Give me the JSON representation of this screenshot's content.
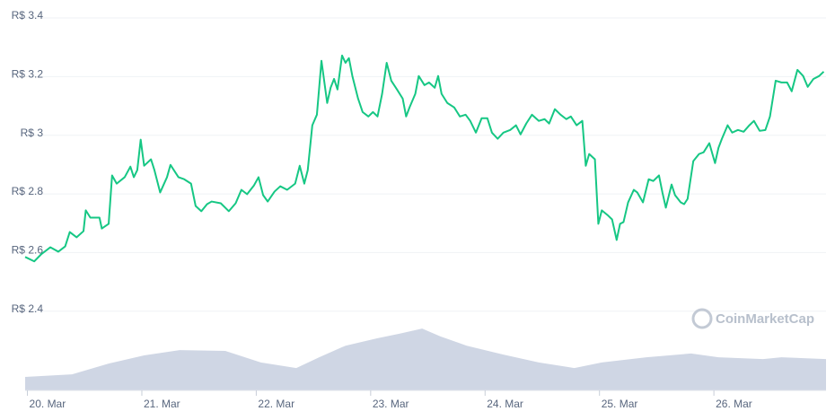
{
  "chart_data": {
    "type": "line",
    "watermark": "CoinMarketCap",
    "ylim": [
      2.13,
      3.4
    ],
    "yticks": [
      {
        "value": 2.4,
        "label": "R$ 2.4"
      },
      {
        "value": 2.6,
        "label": "R$ 2.6"
      },
      {
        "value": 2.8,
        "label": "R$ 2.8"
      },
      {
        "value": 3,
        "label": "R$ 3"
      },
      {
        "value": 3.2,
        "label": "R$ 3.2"
      },
      {
        "value": 3.4,
        "label": "R$ 3.4"
      }
    ],
    "y2lim": [
      0,
      100
    ],
    "xlim": [
      -0.02,
      6.98
    ],
    "xticks": [
      {
        "value": 0,
        "label": "20. Mar"
      },
      {
        "value": 1,
        "label": "21. Mar"
      },
      {
        "value": 2,
        "label": "22. Mar"
      },
      {
        "value": 3,
        "label": "23. Mar"
      },
      {
        "value": 4,
        "label": "24. Mar"
      },
      {
        "value": 5,
        "label": "25. Mar"
      },
      {
        "value": 6,
        "label": "26. Mar"
      }
    ],
    "grid": true,
    "series": [
      {
        "type": "area",
        "axis": "y2",
        "color": "#cfd6e4",
        "x": [
          -0.02,
          0.39,
          0.71,
          1.02,
          1.33,
          1.73,
          2.04,
          2.35,
          2.55,
          2.78,
          3.06,
          3.25,
          3.45,
          3.61,
          3.84,
          4.16,
          4.47,
          4.78,
          5.02,
          5.41,
          5.8,
          6.04,
          6.43,
          6.59,
          6.98
        ],
        "values": [
          3.6,
          4.3,
          7.2,
          9.4,
          10.8,
          10.6,
          7.5,
          6.0,
          8.9,
          12.0,
          14.0,
          15.2,
          16.6,
          14.5,
          12.0,
          9.6,
          7.5,
          6.0,
          7.5,
          8.9,
          9.9,
          8.9,
          8.4,
          8.9,
          8.4
        ]
      },
      {
        "type": "line",
        "color": "#16c784",
        "x": [
          -0.02,
          0.06,
          0.12,
          0.2,
          0.27,
          0.33,
          0.37,
          0.43,
          0.49,
          0.51,
          0.55,
          0.63,
          0.65,
          0.71,
          0.74,
          0.78,
          0.85,
          0.9,
          0.93,
          0.96,
          0.99,
          1.02,
          1.08,
          1.11,
          1.16,
          1.22,
          1.25,
          1.32,
          1.37,
          1.43,
          1.47,
          1.52,
          1.57,
          1.61,
          1.69,
          1.76,
          1.82,
          1.87,
          1.92,
          1.98,
          2.02,
          2.06,
          2.1,
          2.16,
          2.21,
          2.27,
          2.34,
          2.38,
          2.42,
          2.45,
          2.49,
          2.53,
          2.57,
          2.62,
          2.65,
          2.68,
          2.71,
          2.75,
          2.78,
          2.81,
          2.84,
          2.89,
          2.93,
          2.98,
          3.02,
          3.06,
          3.1,
          3.14,
          3.18,
          3.23,
          3.28,
          3.31,
          3.34,
          3.39,
          3.42,
          3.47,
          3.51,
          3.56,
          3.59,
          3.62,
          3.67,
          3.73,
          3.78,
          3.83,
          3.87,
          3.92,
          3.97,
          4.02,
          4.06,
          4.11,
          4.16,
          4.22,
          4.27,
          4.31,
          4.36,
          4.41,
          4.47,
          4.52,
          4.56,
          4.61,
          4.66,
          4.71,
          4.75,
          4.8,
          4.85,
          4.88,
          4.91,
          4.96,
          4.99,
          5.02,
          5.07,
          5.11,
          5.15,
          5.18,
          5.21,
          5.25,
          5.3,
          5.33,
          5.38,
          5.43,
          5.47,
          5.52,
          5.55,
          5.58,
          5.63,
          5.66,
          5.71,
          5.74,
          5.77,
          5.82,
          5.87,
          5.91,
          5.96,
          6.01,
          6.04,
          6.07,
          6.12,
          6.16,
          6.21,
          6.26,
          6.31,
          6.35,
          6.4,
          6.45,
          6.49,
          6.54,
          6.59,
          6.64,
          6.68,
          6.73,
          6.78,
          6.82,
          6.87,
          6.92,
          6.96
        ],
        "values": [
          2.585,
          2.57,
          2.594,
          2.618,
          2.603,
          2.621,
          2.67,
          2.652,
          2.673,
          2.744,
          2.719,
          2.719,
          2.682,
          2.698,
          2.863,
          2.835,
          2.857,
          2.893,
          2.857,
          2.881,
          2.985,
          2.896,
          2.918,
          2.881,
          2.805,
          2.857,
          2.899,
          2.857,
          2.85,
          2.835,
          2.759,
          2.741,
          2.765,
          2.774,
          2.768,
          2.741,
          2.768,
          2.814,
          2.799,
          2.829,
          2.857,
          2.796,
          2.774,
          2.808,
          2.826,
          2.814,
          2.835,
          2.896,
          2.835,
          2.881,
          3.034,
          3.07,
          3.254,
          3.11,
          3.162,
          3.192,
          3.156,
          3.272,
          3.247,
          3.263,
          3.202,
          3.125,
          3.079,
          3.064,
          3.079,
          3.064,
          3.141,
          3.247,
          3.186,
          3.156,
          3.125,
          3.064,
          3.095,
          3.141,
          3.202,
          3.171,
          3.18,
          3.162,
          3.202,
          3.141,
          3.11,
          3.095,
          3.064,
          3.07,
          3.049,
          3.009,
          3.058,
          3.058,
          3.009,
          2.988,
          3.009,
          3.018,
          3.034,
          3.003,
          3.04,
          3.07,
          3.049,
          3.055,
          3.04,
          3.089,
          3.07,
          3.055,
          3.064,
          3.034,
          3.049,
          2.896,
          2.936,
          2.918,
          2.698,
          2.744,
          2.728,
          2.713,
          2.643,
          2.698,
          2.704,
          2.771,
          2.814,
          2.805,
          2.771,
          2.85,
          2.844,
          2.863,
          2.805,
          2.753,
          2.832,
          2.796,
          2.771,
          2.765,
          2.783,
          2.912,
          2.936,
          2.942,
          2.973,
          2.905,
          2.957,
          2.988,
          3.034,
          3.009,
          3.018,
          3.012,
          3.034,
          3.049,
          3.015,
          3.018,
          3.064,
          3.186,
          3.18,
          3.18,
          3.15,
          3.223,
          3.202,
          3.165,
          3.192,
          3.202,
          3.217
        ]
      }
    ]
  }
}
